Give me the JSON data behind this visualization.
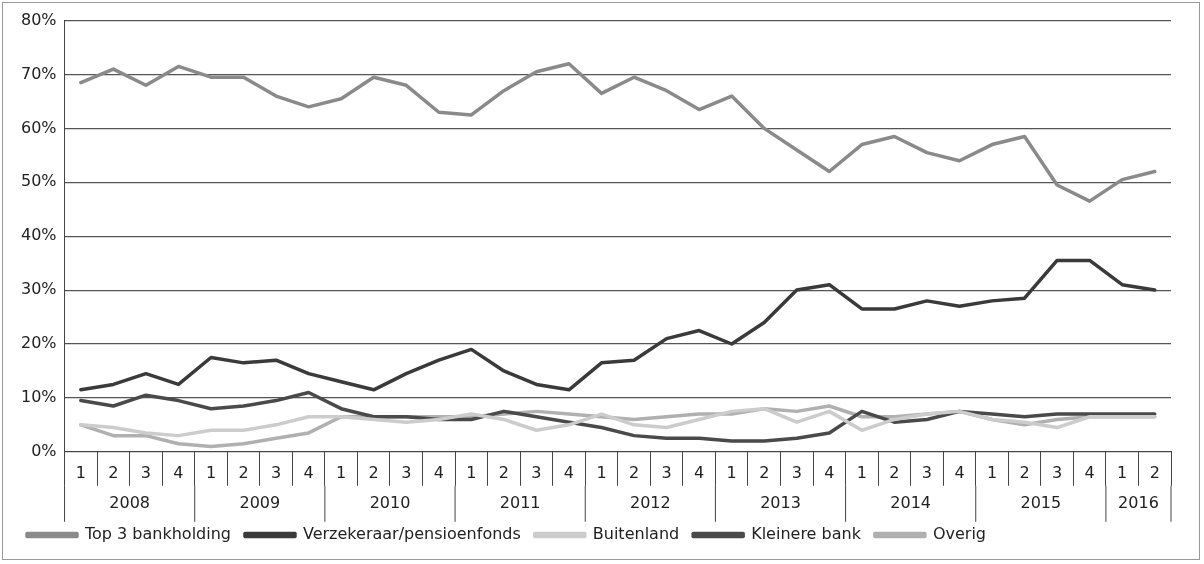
{
  "chart_data": {
    "type": "line",
    "categories": [
      "1",
      "2",
      "3",
      "4",
      "1",
      "2",
      "3",
      "4",
      "1",
      "2",
      "3",
      "4",
      "1",
      "2",
      "3",
      "4",
      "1",
      "2",
      "3",
      "4",
      "1",
      "2",
      "3",
      "4",
      "1",
      "2",
      "3",
      "4",
      "1",
      "2",
      "3",
      "4",
      "1",
      "2"
    ],
    "annotations": [
      "2008",
      "2009",
      "2010",
      "2011",
      "2012",
      "2013",
      "2014",
      "2015",
      "2016"
    ],
    "series": [
      {
        "name": "Top 3 bankholding",
        "color": "#8a8a8a",
        "values": [
          68.5,
          71,
          68,
          71.5,
          69.5,
          69.5,
          66,
          64,
          65.5,
          69.5,
          68,
          63,
          62.5,
          67,
          70.5,
          72,
          66.5,
          69.5,
          67,
          63.5,
          66,
          60,
          56,
          52,
          57,
          58.5,
          55.5,
          54,
          57,
          58.5,
          49.5,
          46.5,
          50.5,
          52
        ]
      },
      {
        "name": "Verzekeraar/pensioenfonds",
        "color": "#3a3a3a",
        "values": [
          11.5,
          12.5,
          14.5,
          12.5,
          17.5,
          16.5,
          17,
          14.5,
          13,
          11.5,
          14.5,
          17,
          19,
          15,
          12.5,
          11.5,
          16.5,
          17,
          21,
          22.5,
          20,
          24,
          30,
          31,
          26.5,
          26.5,
          28,
          27,
          28,
          28.5,
          35.5,
          35.5,
          31,
          30
        ]
      },
      {
        "name": "Buitenland",
        "color": "#cccccc",
        "values": [
          5,
          4.5,
          3.5,
          3,
          4,
          4,
          5,
          6.5,
          6.5,
          6,
          5.5,
          6,
          7,
          6,
          4,
          5,
          7,
          5,
          4.5,
          6,
          7.5,
          8,
          5.5,
          7.5,
          4,
          6,
          7,
          7.5,
          6,
          5.5,
          4.5,
          6.5,
          6.5,
          6.5
        ]
      },
      {
        "name": "Kleinere bank",
        "color": "#4a4a4a",
        "values": [
          9.5,
          8.5,
          10.5,
          9.5,
          8,
          8.5,
          9.5,
          11,
          8,
          6.5,
          6.5,
          6,
          6,
          7.5,
          6.5,
          5.5,
          4.5,
          3,
          2.5,
          2.5,
          2,
          2,
          2.5,
          3.5,
          7.5,
          5.5,
          6,
          7.5,
          7,
          6.5,
          7,
          7,
          7,
          7
        ]
      },
      {
        "name": "Overig",
        "color": "#b0b0b0",
        "values": [
          5,
          3,
          3,
          1.5,
          1,
          1.5,
          2.5,
          3.5,
          6.5,
          6.5,
          6.5,
          6.5,
          6.5,
          7,
          7.5,
          7,
          6.5,
          6,
          6.5,
          7,
          7,
          8,
          7.5,
          8.5,
          6.5,
          6.5,
          7,
          7.5,
          6,
          5,
          6,
          6.5,
          6.5,
          6.5
        ]
      }
    ],
    "ylim": [
      0,
      80
    ],
    "yticks": [
      {
        "value": 0,
        "label": "0%"
      },
      {
        "value": 10,
        "label": "10%"
      },
      {
        "value": 20,
        "label": "20%"
      },
      {
        "value": 30,
        "label": "30%"
      },
      {
        "value": 40,
        "label": "40%"
      },
      {
        "value": 50,
        "label": "50%"
      },
      {
        "value": 60,
        "label": "60%"
      },
      {
        "value": 70,
        "label": "70%"
      },
      {
        "value": 80,
        "label": "80%"
      }
    ],
    "grid": "y",
    "legend": "bottom",
    "marker": "none",
    "line_style": "solid"
  }
}
